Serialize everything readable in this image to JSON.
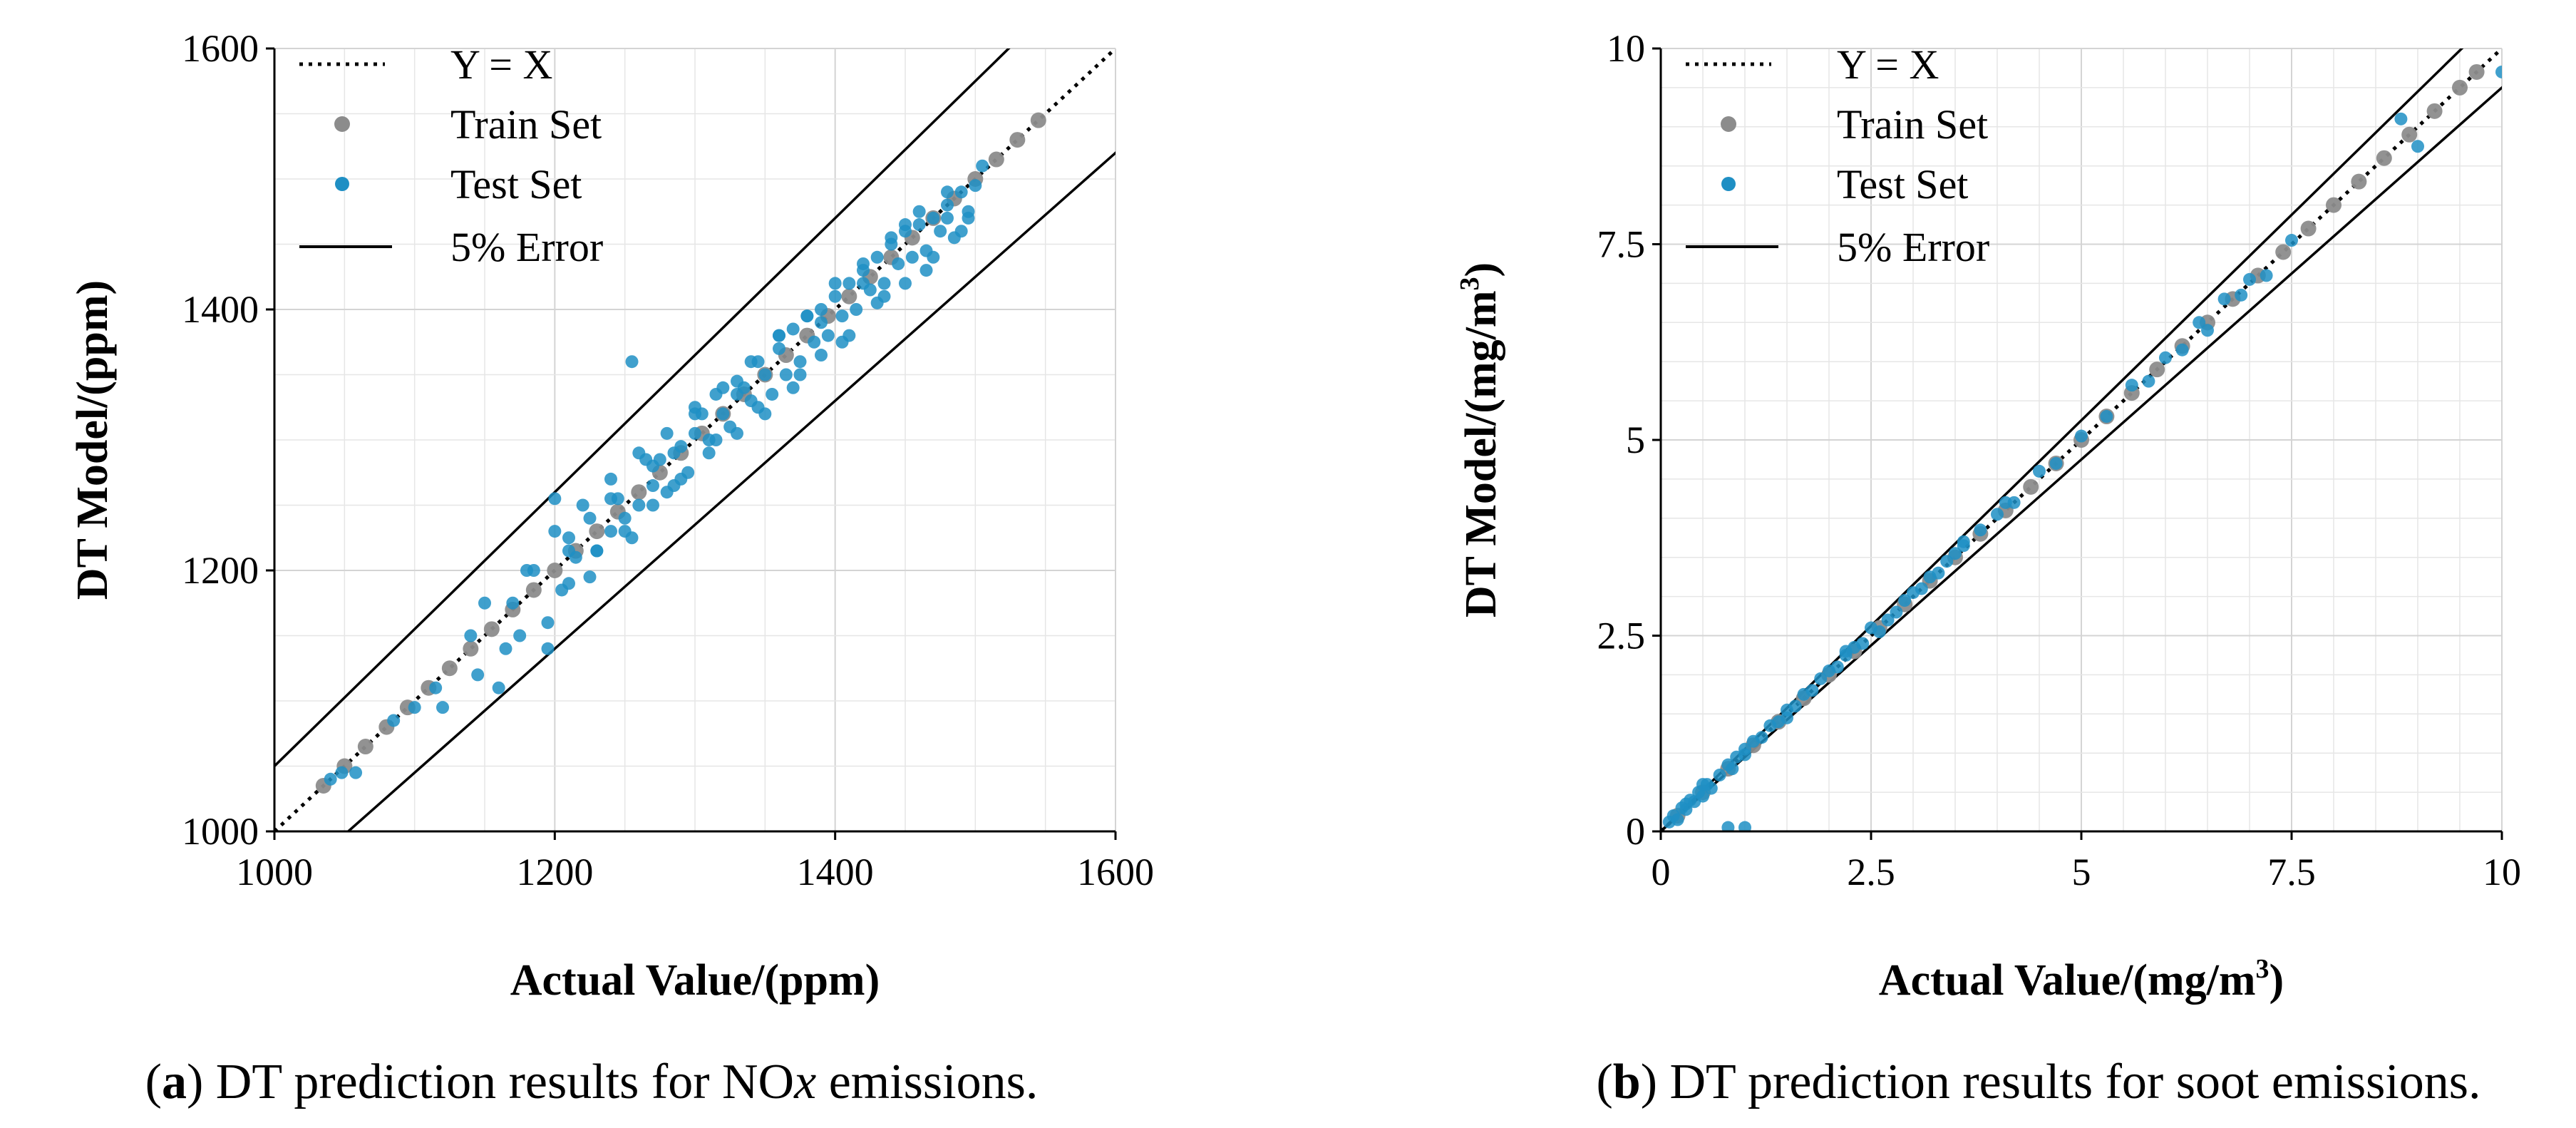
{
  "chart_data": [
    {
      "type": "scatter",
      "id": "a",
      "caption": {
        "letter": "a",
        "text_before": " DT prediction results for NO",
        "italic": "x",
        "text_after": " emissions."
      },
      "xlabel": "Actual Value/(ppm)",
      "ylabel": "DT Model/(ppm)",
      "xlim": [
        1000,
        1600
      ],
      "ylim": [
        1000,
        1600
      ],
      "xticks": [
        1000,
        1200,
        1400,
        1600
      ],
      "yticks": [
        1000,
        1200,
        1400,
        1600
      ],
      "xtick_labels": [
        "1000",
        "1200",
        "1400",
        "1600"
      ],
      "ytick_labels": [
        "1000",
        "1200",
        "1400",
        "1600"
      ],
      "minor_step": 50,
      "grid": true,
      "legend": {
        "location": "top-left",
        "entries": [
          {
            "label": "Y = X",
            "style": "dotted-line"
          },
          {
            "label": "Train Set",
            "style": "gray-marker"
          },
          {
            "label": "Test Set",
            "style": "blue-marker"
          },
          {
            "label": "5% Error",
            "style": "solid-line"
          }
        ]
      },
      "reference_lines": [
        {
          "name": "Y = X",
          "slope": 1.0
        },
        {
          "name": "+5% Error",
          "slope": 1.05
        },
        {
          "name": "-5% Error",
          "slope": 0.95
        }
      ],
      "series": [
        {
          "name": "Train Set",
          "color": "#8c8c8c",
          "x": [
            1035,
            1050,
            1065,
            1080,
            1095,
            1110,
            1125,
            1140,
            1155,
            1170,
            1185,
            1200,
            1215,
            1230,
            1245,
            1260,
            1275,
            1290,
            1305,
            1320,
            1335,
            1350,
            1365,
            1380,
            1395,
            1410,
            1425,
            1440,
            1455,
            1470,
            1485,
            1500,
            1515,
            1530,
            1545
          ],
          "y": [
            1035,
            1050,
            1065,
            1080,
            1095,
            1110,
            1125,
            1140,
            1155,
            1170,
            1185,
            1200,
            1215,
            1230,
            1245,
            1260,
            1275,
            1290,
            1305,
            1320,
            1335,
            1350,
            1365,
            1380,
            1395,
            1410,
            1425,
            1440,
            1455,
            1470,
            1485,
            1500,
            1515,
            1530,
            1545
          ]
        },
        {
          "name": "Test Set",
          "color": "#1f8fc4",
          "x": [
            1040,
            1048,
            1058,
            1085,
            1100,
            1115,
            1120,
            1140,
            1145,
            1160,
            1170,
            1175,
            1185,
            1195,
            1200,
            1205,
            1210,
            1215,
            1225,
            1230,
            1240,
            1245,
            1250,
            1255,
            1260,
            1265,
            1270,
            1275,
            1280,
            1285,
            1290,
            1295,
            1300,
            1305,
            1310,
            1315,
            1320,
            1325,
            1330,
            1335,
            1340,
            1345,
            1350,
            1355,
            1360,
            1365,
            1370,
            1375,
            1380,
            1385,
            1390,
            1395,
            1400,
            1405,
            1410,
            1415,
            1420,
            1425,
            1430,
            1435,
            1440,
            1445,
            1450,
            1455,
            1460,
            1465,
            1470,
            1475,
            1480,
            1485,
            1490,
            1495,
            1500,
            1200,
            1210,
            1220,
            1230,
            1240,
            1250,
            1260,
            1270,
            1280,
            1290,
            1300,
            1310,
            1320,
            1330,
            1340,
            1350,
            1360,
            1370,
            1380,
            1390,
            1400,
            1410,
            1420,
            1430,
            1440,
            1450,
            1460,
            1470,
            1480,
            1490,
            1150,
            1165,
            1180,
            1195,
            1210,
            1225,
            1240,
            1255,
            1270,
            1285,
            1300,
            1315,
            1330,
            1345,
            1360,
            1375,
            1390,
            1405,
            1420,
            1435,
            1450,
            1465,
            1480,
            1495,
            1505
          ],
          "y": [
            1040,
            1045,
            1045,
            1085,
            1095,
            1110,
            1095,
            1150,
            1120,
            1110,
            1175,
            1150,
            1200,
            1140,
            1255,
            1185,
            1225,
            1210,
            1240,
            1215,
            1230,
            1255,
            1240,
            1360,
            1250,
            1285,
            1265,
            1285,
            1260,
            1290,
            1295,
            1275,
            1305,
            1320,
            1300,
            1335,
            1320,
            1310,
            1345,
            1340,
            1330,
            1360,
            1350,
            1335,
            1370,
            1350,
            1385,
            1360,
            1395,
            1375,
            1400,
            1380,
            1410,
            1395,
            1420,
            1400,
            1420,
            1415,
            1440,
            1420,
            1450,
            1435,
            1460,
            1440,
            1465,
            1445,
            1470,
            1460,
            1480,
            1455,
            1490,
            1470,
            1495,
            1230,
            1190,
            1250,
            1215,
            1270,
            1230,
            1290,
            1250,
            1305,
            1270,
            1320,
            1290,
            1340,
            1305,
            1360,
            1320,
            1380,
            1340,
            1395,
            1365,
            1420,
            1380,
            1435,
            1405,
            1455,
            1420,
            1475,
            1440,
            1490,
            1460,
            1175,
            1140,
            1200,
            1160,
            1215,
            1195,
            1255,
            1225,
            1280,
            1265,
            1325,
            1300,
            1335,
            1325,
            1380,
            1350,
            1390,
            1375,
            1430,
            1410,
            1465,
            1430,
            1470,
            1475,
            1510
          ]
        }
      ]
    },
    {
      "type": "scatter",
      "id": "b",
      "caption": {
        "letter": "b",
        "text_before": " DT prediction results for soot emissions.",
        "italic": "",
        "text_after": ""
      },
      "xlabel": "Actual Value/(mg/m",
      "xlabel_sup": "3",
      "xlabel_close": ")",
      "ylabel": "DT Model/(mg/m",
      "ylabel_sup": "3",
      "ylabel_close": ")",
      "xlim": [
        0,
        10
      ],
      "ylim": [
        0,
        10
      ],
      "xticks": [
        0,
        2.5,
        5,
        7.5,
        10
      ],
      "yticks": [
        0,
        2.5,
        5,
        7.5,
        10
      ],
      "xtick_labels": [
        "0",
        "2.5",
        "5",
        "7.5",
        "10"
      ],
      "ytick_labels": [
        "0",
        "2.5",
        "5",
        "7.5",
        "10"
      ],
      "minor_step": 0.5,
      "grid": true,
      "legend": {
        "location": "top-left",
        "entries": [
          {
            "label": "Y = X",
            "style": "dotted-line"
          },
          {
            "label": "Train Set",
            "style": "gray-marker"
          },
          {
            "label": "Test Set",
            "style": "blue-marker"
          },
          {
            "label": "5% Error",
            "style": "solid-line"
          }
        ]
      },
      "reference_lines": [
        {
          "name": "Y = X",
          "slope": 1.0
        },
        {
          "name": "+5% Error",
          "slope": 1.05
        },
        {
          "name": "-5% Error",
          "slope": 0.95
        }
      ],
      "series": [
        {
          "name": "Train Set",
          "color": "#8c8c8c",
          "x": [
            0.2,
            0.5,
            0.8,
            1.1,
            1.4,
            1.7,
            2.0,
            2.3,
            2.6,
            2.9,
            3.2,
            3.5,
            3.8,
            4.1,
            4.4,
            4.7,
            5.0,
            5.3,
            5.6,
            5.9,
            6.2,
            6.5,
            6.8,
            7.1,
            7.4,
            7.7,
            8.0,
            8.3,
            8.6,
            8.9,
            9.2,
            9.5,
            9.7
          ],
          "y": [
            0.2,
            0.5,
            0.8,
            1.1,
            1.4,
            1.7,
            2.0,
            2.3,
            2.6,
            2.9,
            3.2,
            3.5,
            3.8,
            4.1,
            4.4,
            4.7,
            5.0,
            5.3,
            5.6,
            5.9,
            6.2,
            6.5,
            6.8,
            7.1,
            7.4,
            7.7,
            8.0,
            8.3,
            8.6,
            8.9,
            9.2,
            9.5,
            9.7
          ]
        },
        {
          "name": "Test Set",
          "color": "#1f8fc4",
          "x": [
            0.1,
            0.15,
            0.2,
            0.25,
            0.3,
            0.35,
            0.4,
            0.45,
            0.5,
            0.55,
            0.6,
            0.7,
            0.8,
            0.85,
            0.9,
            1.0,
            1.0,
            1.1,
            1.2,
            1.3,
            1.4,
            1.5,
            1.6,
            1.7,
            1.8,
            1.9,
            2.0,
            2.1,
            2.2,
            2.3,
            2.4,
            2.5,
            2.6,
            2.7,
            2.8,
            2.9,
            3.0,
            3.1,
            3.2,
            3.3,
            3.4,
            3.5,
            3.6,
            3.8,
            4.0,
            4.2,
            4.5,
            4.7,
            5.0,
            5.3,
            5.6,
            5.8,
            6.0,
            6.2,
            6.4,
            6.5,
            6.7,
            6.9,
            7.0,
            7.2,
            7.5,
            8.8,
            9.0,
            10.0,
            0.8,
            1.0,
            0.3,
            0.5,
            1.5,
            2.2,
            3.6,
            4.1
          ],
          "y": [
            0.12,
            0.2,
            0.15,
            0.3,
            0.28,
            0.4,
            0.38,
            0.5,
            0.45,
            0.6,
            0.55,
            0.72,
            0.85,
            0.8,
            0.95,
            1.05,
            0.98,
            1.15,
            1.2,
            1.35,
            1.4,
            1.55,
            1.6,
            1.75,
            1.8,
            1.95,
            2.05,
            2.1,
            2.25,
            2.35,
            2.4,
            2.6,
            2.55,
            2.7,
            2.8,
            2.95,
            3.05,
            3.1,
            3.25,
            3.3,
            3.45,
            3.55,
            3.65,
            3.85,
            4.05,
            4.2,
            4.6,
            4.7,
            5.05,
            5.3,
            5.7,
            5.75,
            6.05,
            6.15,
            6.5,
            6.4,
            6.8,
            6.85,
            7.05,
            7.1,
            7.55,
            9.1,
            8.75,
            9.7,
            0.05,
            0.05,
            0.35,
            0.6,
            1.45,
            2.3,
            3.7,
            4.2
          ]
        }
      ]
    }
  ]
}
